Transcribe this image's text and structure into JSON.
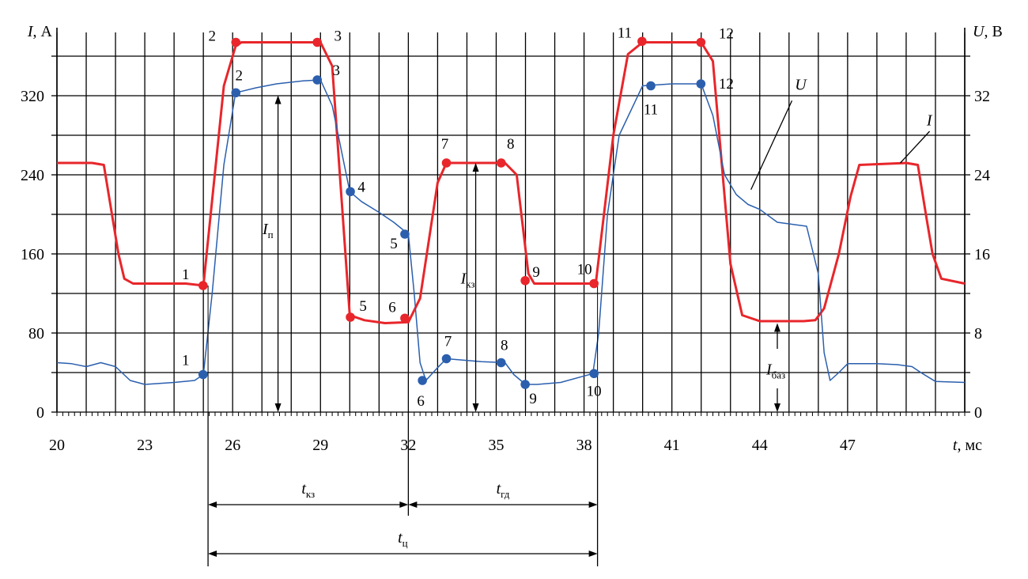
{
  "chart_data": {
    "type": "line",
    "xlabel": "t, мс",
    "ylabel_left": "I, А",
    "ylabel_right": "U, В",
    "xlim": [
      20,
      51
    ],
    "ylim_left": [
      0,
      384
    ],
    "ylim_right": [
      0,
      38.4
    ],
    "x_ticks": [
      20,
      23,
      26,
      29,
      32,
      35,
      38,
      41,
      44,
      47
    ],
    "y_ticks_left": [
      0,
      80,
      160,
      240,
      320
    ],
    "y_ticks_right": [
      0,
      8,
      16,
      24,
      32
    ],
    "grid": true,
    "colors": {
      "current": "#e8262b",
      "voltage": "#2b5fae"
    },
    "series": [
      {
        "name": "I",
        "axis": "left",
        "points": [
          [
            20,
            252
          ],
          [
            21.2,
            252
          ],
          [
            21.6,
            250
          ],
          [
            22.1,
            160
          ],
          [
            22.3,
            135
          ],
          [
            22.6,
            130
          ],
          [
            24.4,
            130
          ],
          [
            25,
            128
          ],
          [
            25.7,
            330
          ],
          [
            26.1,
            370
          ],
          [
            26.3,
            374
          ],
          [
            29,
            374
          ],
          [
            29.4,
            350
          ],
          [
            30,
            98
          ],
          [
            30.5,
            93
          ],
          [
            31.2,
            90
          ],
          [
            32,
            91
          ],
          [
            32.4,
            115
          ],
          [
            33,
            232
          ],
          [
            33.3,
            252
          ],
          [
            35.3,
            252
          ],
          [
            35.7,
            240
          ],
          [
            36.1,
            140
          ],
          [
            36.3,
            130
          ],
          [
            38.4,
            130
          ],
          [
            39,
            280
          ],
          [
            39.5,
            362
          ],
          [
            40,
            374
          ],
          [
            42,
            374
          ],
          [
            42.4,
            355
          ],
          [
            43,
            150
          ],
          [
            43.4,
            98
          ],
          [
            44,
            92
          ],
          [
            45.5,
            92
          ],
          [
            45.9,
            93
          ],
          [
            46.2,
            105
          ],
          [
            46.7,
            160
          ],
          [
            47.1,
            218
          ],
          [
            47.4,
            250
          ],
          [
            49,
            252
          ],
          [
            49.4,
            250
          ],
          [
            49.7,
            195
          ],
          [
            49.9,
            160
          ],
          [
            50.2,
            135
          ],
          [
            51,
            130
          ]
        ]
      },
      {
        "name": "U",
        "axis": "right",
        "points": [
          [
            20,
            5
          ],
          [
            20.5,
            4.9
          ],
          [
            21,
            4.6
          ],
          [
            21.5,
            5
          ],
          [
            22,
            4.6
          ],
          [
            22.5,
            3.2
          ],
          [
            23,
            2.8
          ],
          [
            24,
            3
          ],
          [
            24.7,
            3.2
          ],
          [
            25,
            3.8
          ],
          [
            25.3,
            12
          ],
          [
            25.7,
            25
          ],
          [
            26.1,
            32.3
          ],
          [
            26.8,
            32.8
          ],
          [
            27.5,
            33.2
          ],
          [
            28.4,
            33.5
          ],
          [
            29,
            33.6
          ],
          [
            29.4,
            31
          ],
          [
            30,
            22.3
          ],
          [
            30.4,
            21.3
          ],
          [
            31,
            20.2
          ],
          [
            31.5,
            19.2
          ],
          [
            32,
            18
          ],
          [
            32.2,
            12
          ],
          [
            32.4,
            5
          ],
          [
            32.6,
            3.2
          ],
          [
            33,
            4.5
          ],
          [
            33.3,
            5.4
          ],
          [
            34.5,
            5.1
          ],
          [
            35.3,
            5
          ],
          [
            35.6,
            3.8
          ],
          [
            36,
            2.8
          ],
          [
            36.4,
            2.8
          ],
          [
            37.2,
            3
          ],
          [
            38.3,
            3.9
          ],
          [
            38.5,
            8
          ],
          [
            38.8,
            20
          ],
          [
            39.2,
            28
          ],
          [
            40,
            33
          ],
          [
            41,
            33.2
          ],
          [
            42,
            33.2
          ],
          [
            42.4,
            30
          ],
          [
            42.8,
            24
          ],
          [
            43.2,
            22
          ],
          [
            43.6,
            21
          ],
          [
            44,
            20.5
          ],
          [
            44.6,
            19.2
          ],
          [
            45.6,
            18.8
          ],
          [
            46,
            14
          ],
          [
            46.2,
            6
          ],
          [
            46.4,
            3.2
          ],
          [
            46.7,
            4
          ],
          [
            47,
            4.9
          ],
          [
            48,
            4.9
          ],
          [
            48.7,
            4.8
          ],
          [
            49.2,
            4.6
          ],
          [
            49.5,
            4
          ],
          [
            50,
            3.1
          ],
          [
            51,
            3
          ]
        ]
      }
    ],
    "marked_points_current": [
      {
        "label": "1",
        "x": 24.99,
        "y": 128
      },
      {
        "label": "2",
        "x": 26.11,
        "y": 374
      },
      {
        "label": "3",
        "x": 28.89,
        "y": 374
      },
      {
        "label": "5",
        "x": 30.02,
        "y": 96
      },
      {
        "label": "6",
        "x": 31.88,
        "y": 95
      },
      {
        "label": "7",
        "x": 33.3,
        "y": 252
      },
      {
        "label": "8",
        "x": 35.17,
        "y": 252
      },
      {
        "label": "9",
        "x": 35.99,
        "y": 133
      },
      {
        "label": "10",
        "x": 38.34,
        "y": 130
      },
      {
        "label": "11",
        "x": 39.98,
        "y": 375
      },
      {
        "label": "12",
        "x": 41.99,
        "y": 374
      }
    ],
    "marked_points_voltage": [
      {
        "label": "1",
        "x": 24.99,
        "y": 3.8
      },
      {
        "label": "2",
        "x": 26.11,
        "y": 32.3
      },
      {
        "label": "3",
        "x": 28.89,
        "y": 33.6
      },
      {
        "label": "4",
        "x": 30.02,
        "y": 22.3
      },
      {
        "label": "5",
        "x": 31.88,
        "y": 18
      },
      {
        "label": "6",
        "x": 32.48,
        "y": 3.2
      },
      {
        "label": "7",
        "x": 33.3,
        "y": 5.4
      },
      {
        "label": "8",
        "x": 35.17,
        "y": 5
      },
      {
        "label": "9",
        "x": 35.99,
        "y": 2.8
      },
      {
        "label": "10",
        "x": 38.34,
        "y": 3.9
      },
      {
        "label": "11",
        "x": 40.28,
        "y": 33
      },
      {
        "label": "12",
        "x": 41.99,
        "y": 33.2
      }
    ],
    "annotations": [
      {
        "base": "I",
        "sub": "п"
      },
      {
        "base": "I",
        "sub": "кз"
      },
      {
        "base": "I",
        "sub": "баз"
      },
      {
        "base": "t",
        "sub": "кз"
      },
      {
        "base": "t",
        "sub": "гд"
      },
      {
        "base": "t",
        "sub": "ц"
      },
      {
        "base": "U",
        "sub": ""
      },
      {
        "base": "I",
        "sub": ""
      }
    ]
  }
}
